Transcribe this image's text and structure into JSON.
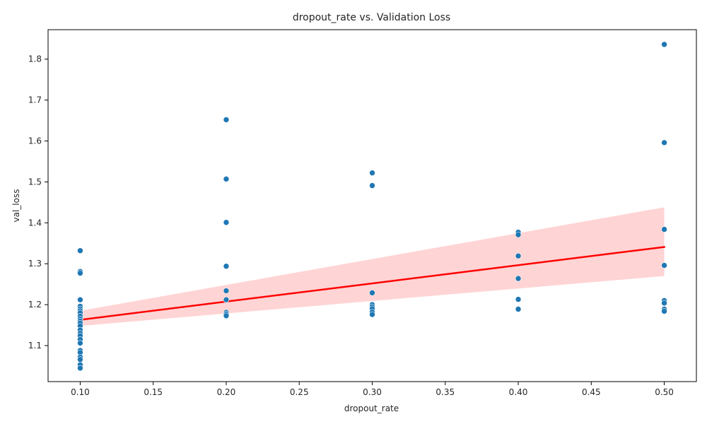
{
  "chart_data": {
    "type": "scatter",
    "title": "dropout_rate vs. Validation Loss",
    "xlabel": "dropout_rate",
    "ylabel": "val_loss",
    "xlim": [
      0.078,
      0.522
    ],
    "ylim": [
      1.012,
      1.872
    ],
    "xticks": [
      0.1,
      0.15,
      0.2,
      0.25,
      0.3,
      0.35,
      0.4,
      0.45,
      0.5
    ],
    "xtick_labels": [
      "0.10",
      "0.15",
      "0.20",
      "0.25",
      "0.30",
      "0.35",
      "0.40",
      "0.45",
      "0.50"
    ],
    "yticks": [
      1.1,
      1.2,
      1.3,
      1.4,
      1.5,
      1.6,
      1.7,
      1.8
    ],
    "ytick_labels": [
      "1.1",
      "1.2",
      "1.3",
      "1.4",
      "1.5",
      "1.6",
      "1.7",
      "1.8"
    ],
    "grid": false,
    "points": [
      {
        "x": 0.1,
        "y": 1.332
      },
      {
        "x": 0.1,
        "y": 1.281
      },
      {
        "x": 0.1,
        "y": 1.277
      },
      {
        "x": 0.1,
        "y": 1.212
      },
      {
        "x": 0.1,
        "y": 1.196
      },
      {
        "x": 0.1,
        "y": 1.19
      },
      {
        "x": 0.1,
        "y": 1.185
      },
      {
        "x": 0.1,
        "y": 1.18
      },
      {
        "x": 0.1,
        "y": 1.172
      },
      {
        "x": 0.1,
        "y": 1.165
      },
      {
        "x": 0.1,
        "y": 1.16
      },
      {
        "x": 0.1,
        "y": 1.155
      },
      {
        "x": 0.1,
        "y": 1.148
      },
      {
        "x": 0.1,
        "y": 1.138
      },
      {
        "x": 0.1,
        "y": 1.13
      },
      {
        "x": 0.1,
        "y": 1.124
      },
      {
        "x": 0.1,
        "y": 1.115
      },
      {
        "x": 0.1,
        "y": 1.106
      },
      {
        "x": 0.1,
        "y": 1.088
      },
      {
        "x": 0.1,
        "y": 1.083
      },
      {
        "x": 0.1,
        "y": 1.072
      },
      {
        "x": 0.1,
        "y": 1.066
      },
      {
        "x": 0.1,
        "y": 1.053
      },
      {
        "x": 0.1,
        "y": 1.045
      },
      {
        "x": 0.2,
        "y": 1.652
      },
      {
        "x": 0.2,
        "y": 1.507
      },
      {
        "x": 0.2,
        "y": 1.401
      },
      {
        "x": 0.2,
        "y": 1.294
      },
      {
        "x": 0.2,
        "y": 1.234
      },
      {
        "x": 0.2,
        "y": 1.212
      },
      {
        "x": 0.2,
        "y": 1.181
      },
      {
        "x": 0.2,
        "y": 1.177
      },
      {
        "x": 0.2,
        "y": 1.173
      },
      {
        "x": 0.3,
        "y": 1.522
      },
      {
        "x": 0.3,
        "y": 1.491
      },
      {
        "x": 0.3,
        "y": 1.229
      },
      {
        "x": 0.3,
        "y": 1.2
      },
      {
        "x": 0.3,
        "y": 1.195
      },
      {
        "x": 0.3,
        "y": 1.19
      },
      {
        "x": 0.3,
        "y": 1.182
      },
      {
        "x": 0.3,
        "y": 1.176
      },
      {
        "x": 0.4,
        "y": 1.377
      },
      {
        "x": 0.4,
        "y": 1.371
      },
      {
        "x": 0.4,
        "y": 1.319
      },
      {
        "x": 0.4,
        "y": 1.264
      },
      {
        "x": 0.4,
        "y": 1.213
      },
      {
        "x": 0.4,
        "y": 1.189
      },
      {
        "x": 0.5,
        "y": 1.836
      },
      {
        "x": 0.5,
        "y": 1.596
      },
      {
        "x": 0.5,
        "y": 1.384
      },
      {
        "x": 0.5,
        "y": 1.296
      },
      {
        "x": 0.5,
        "y": 1.21
      },
      {
        "x": 0.5,
        "y": 1.204
      },
      {
        "x": 0.5,
        "y": 1.189
      },
      {
        "x": 0.5,
        "y": 1.184
      }
    ],
    "regression": {
      "x": [
        0.1,
        0.5
      ],
      "y": [
        1.163,
        1.341
      ],
      "ci_lower": [
        1.148,
        1.27
      ],
      "ci_upper": [
        1.185,
        1.438
      ],
      "line_color": "#ff0000",
      "band_color": "#ffcccc"
    },
    "point_color": "#1f77b4"
  }
}
